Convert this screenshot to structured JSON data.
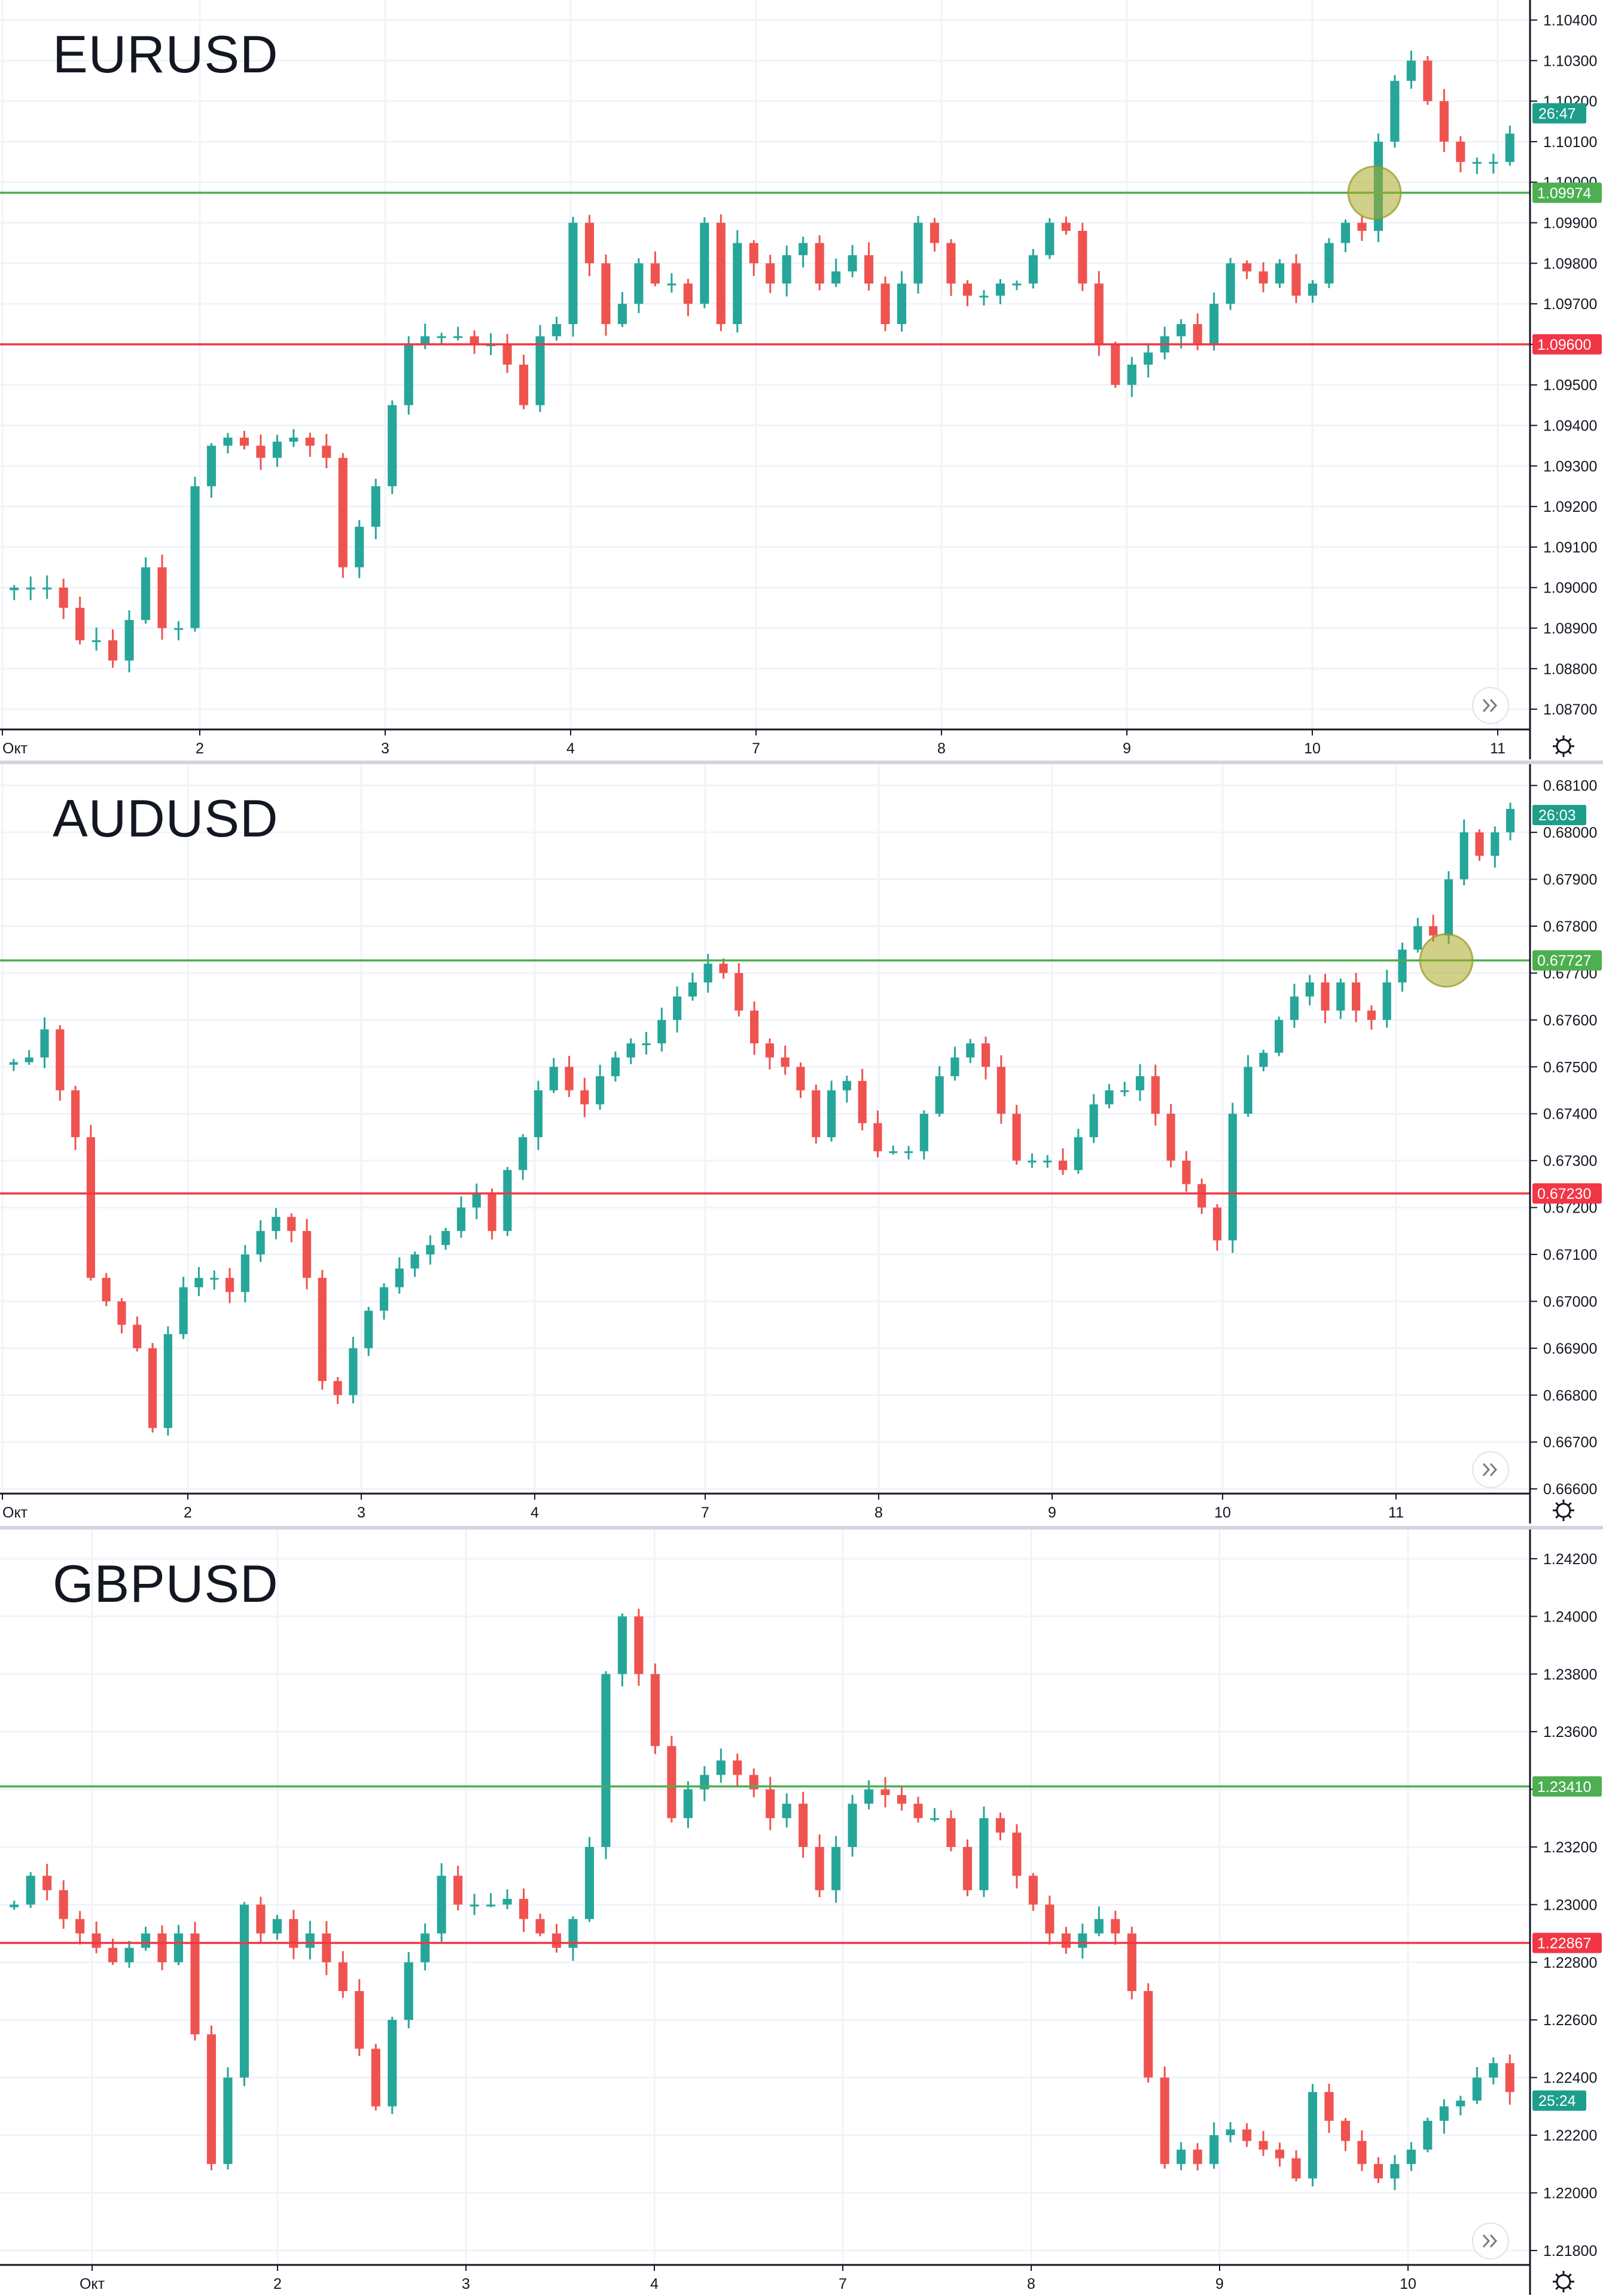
{
  "charts": [
    {
      "symbol": "EURUSD",
      "chart_data": {
        "type": "candlestick",
        "title": "EURUSD",
        "y_ticks": [
          "1.10400",
          "1.10300",
          "1.10200",
          "1.10100",
          "1.10000",
          "1.09900",
          "1.09800",
          "1.09700",
          "1.09600",
          "1.09500",
          "1.09400",
          "1.09300",
          "1.09200",
          "1.09100",
          "1.09000",
          "1.08900",
          "1.08800",
          "1.08700"
        ],
        "ylim": [
          1.0865,
          1.1042
        ],
        "x_ticks": [
          "Окт",
          "2",
          "3",
          "4",
          "7",
          "8",
          "9",
          "10",
          "11"
        ],
        "levels": [
          {
            "value": 1.09974,
            "label": "1.09974",
            "color": "#4caf50"
          },
          {
            "value": 1.096,
            "label": "1.09600",
            "color": "#f23645"
          }
        ],
        "price_badge": {
          "label": "26:47",
          "value": 1.1017
        },
        "path": [
          1.09,
          1.09,
          1.09,
          1.0895,
          1.0887,
          1.0887,
          1.0882,
          1.0892,
          1.0905,
          1.089,
          1.089,
          1.0925,
          1.0935,
          1.0937,
          1.0935,
          1.0932,
          1.0936,
          1.0937,
          1.0935,
          1.0932,
          1.0905,
          1.0915,
          1.0925,
          1.0945,
          1.096,
          1.0962,
          1.0962,
          1.0962,
          1.096,
          1.096,
          1.0955,
          1.0945,
          1.0962,
          1.0965,
          1.099,
          1.098,
          1.0965,
          1.097,
          1.098,
          1.0975,
          1.0975,
          1.097,
          1.099,
          1.0965,
          1.0985,
          1.098,
          1.0975,
          1.0982,
          1.0985,
          1.0975,
          1.0978,
          1.0982,
          1.0975,
          1.0965,
          1.0975,
          1.099,
          1.0985,
          1.0975,
          1.0972,
          1.0972,
          1.0975,
          1.0975,
          1.0982,
          1.099,
          1.0988,
          1.0975,
          1.096,
          1.095,
          1.0955,
          1.0958,
          1.0962,
          1.0965,
          1.096,
          1.097,
          1.098,
          1.0978,
          1.0975,
          1.098,
          1.0972,
          1.0975,
          1.0985,
          1.099,
          1.0988,
          1.101,
          1.1025,
          1.103,
          1.102,
          1.101,
          1.1005,
          1.1005,
          1.1005,
          1.1012
        ]
      }
    },
    {
      "symbol": "AUDUSD",
      "chart_data": {
        "type": "candlestick",
        "title": "AUDUSD",
        "y_ticks": [
          "0.68100",
          "0.68000",
          "0.67900",
          "0.67800",
          "0.67700",
          "0.67600",
          "0.67500",
          "0.67400",
          "0.67300",
          "0.67200",
          "0.67100",
          "0.67000",
          "0.66900",
          "0.66800",
          "0.66700",
          "0.66600"
        ],
        "ylim": [
          0.6659,
          0.6812
        ],
        "x_ticks": [
          "Окт",
          "2",
          "3",
          "4",
          "7",
          "8",
          "9",
          "10",
          "11"
        ],
        "levels": [
          {
            "value": 0.67727,
            "label": "0.67727",
            "color": "#4caf50"
          },
          {
            "value": 0.6723,
            "label": "0.67230",
            "color": "#f23645"
          }
        ],
        "price_badge": {
          "label": "26:03",
          "value": 0.68037
        },
        "path": [
          0.6751,
          0.6752,
          0.6758,
          0.6745,
          0.6735,
          0.6705,
          0.67,
          0.6695,
          0.669,
          0.6673,
          0.6693,
          0.6703,
          0.6705,
          0.6705,
          0.6702,
          0.671,
          0.6715,
          0.6718,
          0.6715,
          0.6705,
          0.6683,
          0.668,
          0.669,
          0.6698,
          0.6703,
          0.6707,
          0.671,
          0.6712,
          0.6715,
          0.672,
          0.6723,
          0.6715,
          0.6728,
          0.6735,
          0.6745,
          0.675,
          0.6745,
          0.6742,
          0.6748,
          0.6752,
          0.6755,
          0.6755,
          0.676,
          0.6765,
          0.6768,
          0.6772,
          0.677,
          0.6762,
          0.6755,
          0.6752,
          0.675,
          0.6745,
          0.6735,
          0.6745,
          0.6747,
          0.6738,
          0.6732,
          0.6732,
          0.6732,
          0.674,
          0.6748,
          0.6752,
          0.6755,
          0.675,
          0.674,
          0.673,
          0.673,
          0.673,
          0.6728,
          0.6735,
          0.6742,
          0.6745,
          0.6745,
          0.6748,
          0.674,
          0.673,
          0.6725,
          0.672,
          0.6713,
          0.674,
          0.675,
          0.6753,
          0.676,
          0.6765,
          0.6768,
          0.6762,
          0.6768,
          0.6762,
          0.676,
          0.6768,
          0.6775,
          0.678,
          0.6778,
          0.679,
          0.68,
          0.6795,
          0.68,
          0.6805
        ]
      }
    },
    {
      "symbol": "GBPUSD",
      "chart_data": {
        "type": "candlestick",
        "title": "GBPUSD",
        "y_ticks": [
          "1.24200",
          "1.24000",
          "1.23800",
          "1.23600",
          "1.23400",
          "1.23200",
          "1.23000",
          "1.22800",
          "1.22600",
          "1.22400",
          "1.22200",
          "1.22000",
          "1.21800"
        ],
        "ylim": [
          1.2175,
          1.2426
        ],
        "x_ticks": [
          "Окт",
          "2",
          "3",
          "4",
          "7",
          "8",
          "9",
          "10"
        ],
        "levels": [
          {
            "value": 1.2341,
            "label": "1.23410",
            "color": "#4caf50"
          },
          {
            "value": 1.22867,
            "label": "1.22867",
            "color": "#f23645"
          }
        ],
        "price_badge": {
          "label": "25:24",
          "value": 1.2232
        },
        "path": [
          1.23,
          1.231,
          1.2305,
          1.2295,
          1.229,
          1.2285,
          1.228,
          1.2285,
          1.229,
          1.228,
          1.229,
          1.2255,
          1.221,
          1.224,
          1.23,
          1.229,
          1.2295,
          1.2285,
          1.229,
          1.228,
          1.227,
          1.225,
          1.223,
          1.226,
          1.228,
          1.229,
          1.231,
          1.23,
          1.23,
          1.23,
          1.2302,
          1.2295,
          1.229,
          1.2285,
          1.2295,
          1.232,
          1.238,
          1.24,
          1.238,
          1.2355,
          1.233,
          1.234,
          1.2345,
          1.235,
          1.2345,
          1.234,
          1.233,
          1.2335,
          1.232,
          1.2305,
          1.232,
          1.2335,
          1.234,
          1.2338,
          1.2335,
          1.233,
          1.233,
          1.232,
          1.2305,
          1.233,
          1.2325,
          1.231,
          1.23,
          1.229,
          1.2285,
          1.229,
          1.2295,
          1.229,
          1.227,
          1.224,
          1.221,
          1.2215,
          1.221,
          1.222,
          1.2222,
          1.2218,
          1.2215,
          1.2212,
          1.2205,
          1.2235,
          1.2225,
          1.2218,
          1.221,
          1.2205,
          1.221,
          1.2215,
          1.2225,
          1.223,
          1.2232,
          1.224,
          1.2245,
          1.2235
        ]
      }
    }
  ],
  "colors": {
    "up": "#26a69a",
    "down": "#ef5350",
    "grid": "#f0f3fa",
    "axis_text": "#131722",
    "highlight": "#b5b64a"
  }
}
